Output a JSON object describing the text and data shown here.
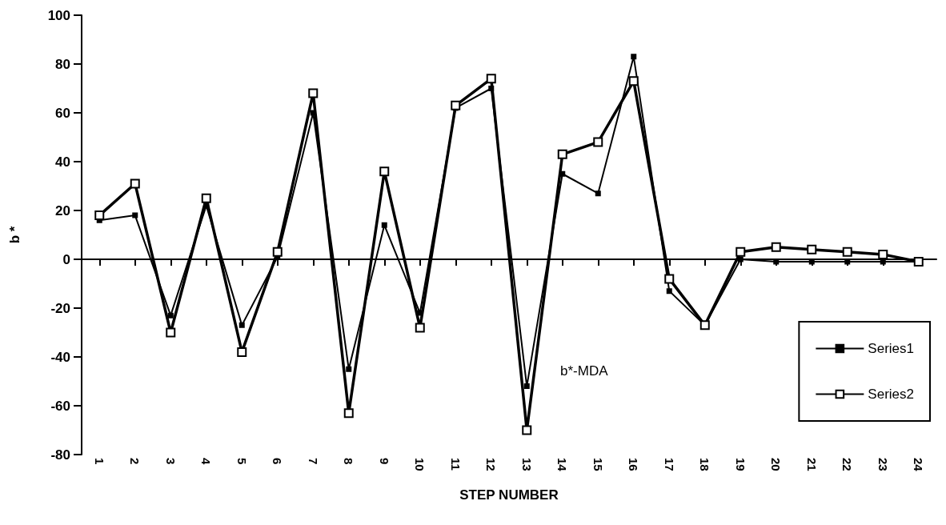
{
  "chart_data": {
    "type": "line",
    "xlabel": "STEP NUMBER",
    "ylabel": "b *",
    "categories": [
      "1",
      "2",
      "3",
      "4",
      "5",
      "6",
      "7",
      "8",
      "9",
      "10",
      "11",
      "12",
      "13",
      "14",
      "15",
      "16",
      "17",
      "18",
      "19",
      "20",
      "21",
      "22",
      "23",
      "24"
    ],
    "series": [
      {
        "name": "Series1",
        "color": "#000000",
        "marker": "square",
        "values": [
          16,
          18,
          -23,
          22,
          -27,
          1,
          60,
          -45,
          14,
          -22,
          62,
          70,
          -52,
          35,
          27,
          83,
          -13,
          -27,
          0,
          -1,
          -1,
          -1,
          -1,
          -1
        ]
      },
      {
        "name": "Series2",
        "color": "#000000",
        "marker": "square",
        "values": [
          18,
          31,
          -30,
          25,
          -38,
          3,
          68,
          -63,
          36,
          -28,
          63,
          74,
          -70,
          43,
          48,
          73,
          -8,
          -27,
          3,
          5,
          4,
          3,
          2,
          -1
        ]
      }
    ],
    "ylim": [
      -80,
      100
    ],
    "yticks": [
      -80,
      -60,
      -40,
      -20,
      0,
      20,
      40,
      60,
      80,
      100
    ],
    "annotations": [
      "b*-MDA"
    ],
    "legend": "bottom right",
    "line_style": "solid"
  }
}
